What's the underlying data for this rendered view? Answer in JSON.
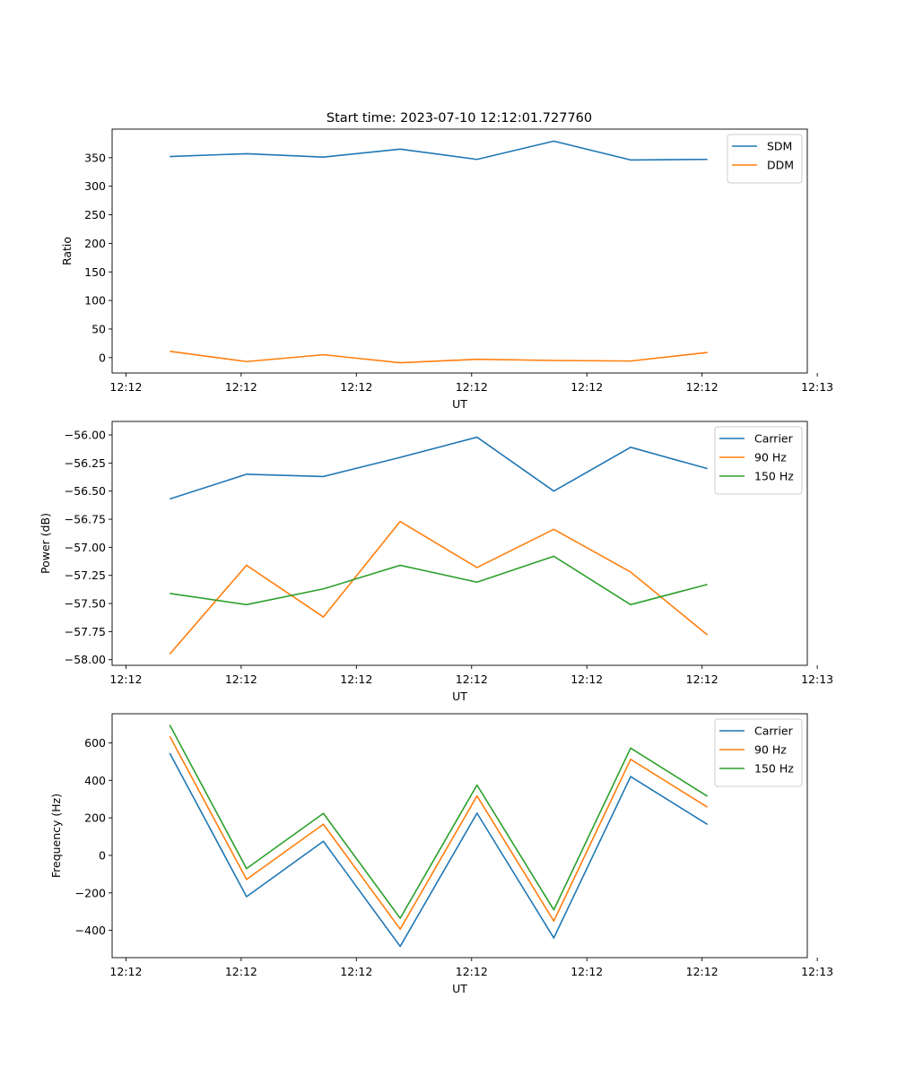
{
  "figure": {
    "title": "Start time: 2023-07-10 12:12:01.727760"
  },
  "colors": {
    "blue": "#1f77b4",
    "orange": "#ff7f0e",
    "green": "#2ca02c"
  },
  "chart_data": [
    {
      "type": "line",
      "title": "Start time: 2023-07-10 12:12:01.727760",
      "xlabel": "UT",
      "ylabel": "Ratio",
      "x": [
        1,
        2,
        3,
        4,
        5,
        6,
        7,
        8
      ],
      "xlim": [
        0.25,
        9.3
      ],
      "xticks": [
        0.43,
        1.93,
        3.43,
        4.93,
        6.43,
        7.93,
        9.43
      ],
      "xtick_labels": [
        "12:12",
        "12:12",
        "12:12",
        "12:12",
        "12:12",
        "12:12",
        "12:13"
      ],
      "ylim": [
        -27,
        400
      ],
      "yticks": [
        0,
        50,
        100,
        150,
        200,
        250,
        300,
        350
      ],
      "ytick_labels": [
        "0",
        "50",
        "100",
        "150",
        "200",
        "250",
        "300",
        "350"
      ],
      "legend": "top-right",
      "series": [
        {
          "name": "SDM",
          "color": "#1f77b4",
          "values": [
            352,
            357,
            351,
            365,
            347,
            379,
            346,
            347
          ]
        },
        {
          "name": "DDM",
          "color": "#ff7f0e",
          "values": [
            11,
            -7,
            5,
            -9,
            -3,
            -5,
            -6,
            9
          ]
        }
      ]
    },
    {
      "type": "line",
      "title": "",
      "xlabel": "UT",
      "ylabel": "Power (dB)",
      "x": [
        1,
        2,
        3,
        4,
        5,
        6,
        7,
        8
      ],
      "xlim": [
        0.25,
        9.3
      ],
      "xticks": [
        0.43,
        1.93,
        3.43,
        4.93,
        6.43,
        7.93,
        9.43
      ],
      "xtick_labels": [
        "12:12",
        "12:12",
        "12:12",
        "12:12",
        "12:12",
        "12:12",
        "12:13"
      ],
      "ylim": [
        -58.05,
        -55.88
      ],
      "yticks": [
        -58.0,
        -57.75,
        -57.5,
        -57.25,
        -57.0,
        -56.75,
        -56.5,
        -56.25,
        -56.0
      ],
      "ytick_labels": [
        "−58.00",
        "−57.75",
        "−57.50",
        "−57.25",
        "−57.00",
        "−56.75",
        "−56.50",
        "−56.25",
        "−56.00"
      ],
      "legend": "top-right",
      "series": [
        {
          "name": "Carrier",
          "color": "#1f77b4",
          "values": [
            -56.57,
            -56.35,
            -56.37,
            -56.2,
            -56.02,
            -56.5,
            -56.11,
            -56.3
          ]
        },
        {
          "name": "90 Hz",
          "color": "#ff7f0e",
          "values": [
            -57.95,
            -57.16,
            -57.62,
            -56.77,
            -57.18,
            -56.84,
            -57.22,
            -57.78
          ]
        },
        {
          "name": "150 Hz",
          "color": "#2ca02c",
          "values": [
            -57.41,
            -57.51,
            -57.37,
            -57.16,
            -57.31,
            -57.08,
            -57.51,
            -57.33
          ]
        }
      ]
    },
    {
      "type": "line",
      "title": "",
      "xlabel": "UT",
      "ylabel": "Frequency (Hz)",
      "x": [
        1,
        2,
        3,
        4,
        5,
        6,
        7,
        8
      ],
      "xlim": [
        0.25,
        9.3
      ],
      "xticks": [
        0.43,
        1.93,
        3.43,
        4.93,
        6.43,
        7.93,
        9.43
      ],
      "xtick_labels": [
        "12:12",
        "12:12",
        "12:12",
        "12:12",
        "12:12",
        "12:12",
        "12:13"
      ],
      "ylim": [
        -545,
        755
      ],
      "yticks": [
        -400,
        -200,
        0,
        200,
        400,
        600
      ],
      "ytick_labels": [
        "−400",
        "−200",
        "0",
        "200",
        "400",
        "600"
      ],
      "legend": "top-right",
      "series": [
        {
          "name": "Carrier",
          "color": "#1f77b4",
          "values": [
            545,
            -220,
            75,
            -485,
            225,
            -440,
            420,
            165
          ]
        },
        {
          "name": "90 Hz",
          "color": "#ff7f0e",
          "values": [
            635,
            -128,
            166,
            -393,
            317,
            -350,
            512,
            257
          ]
        },
        {
          "name": "150 Hz",
          "color": "#2ca02c",
          "values": [
            695,
            -70,
            224,
            -335,
            375,
            -290,
            572,
            315
          ]
        }
      ]
    }
  ]
}
